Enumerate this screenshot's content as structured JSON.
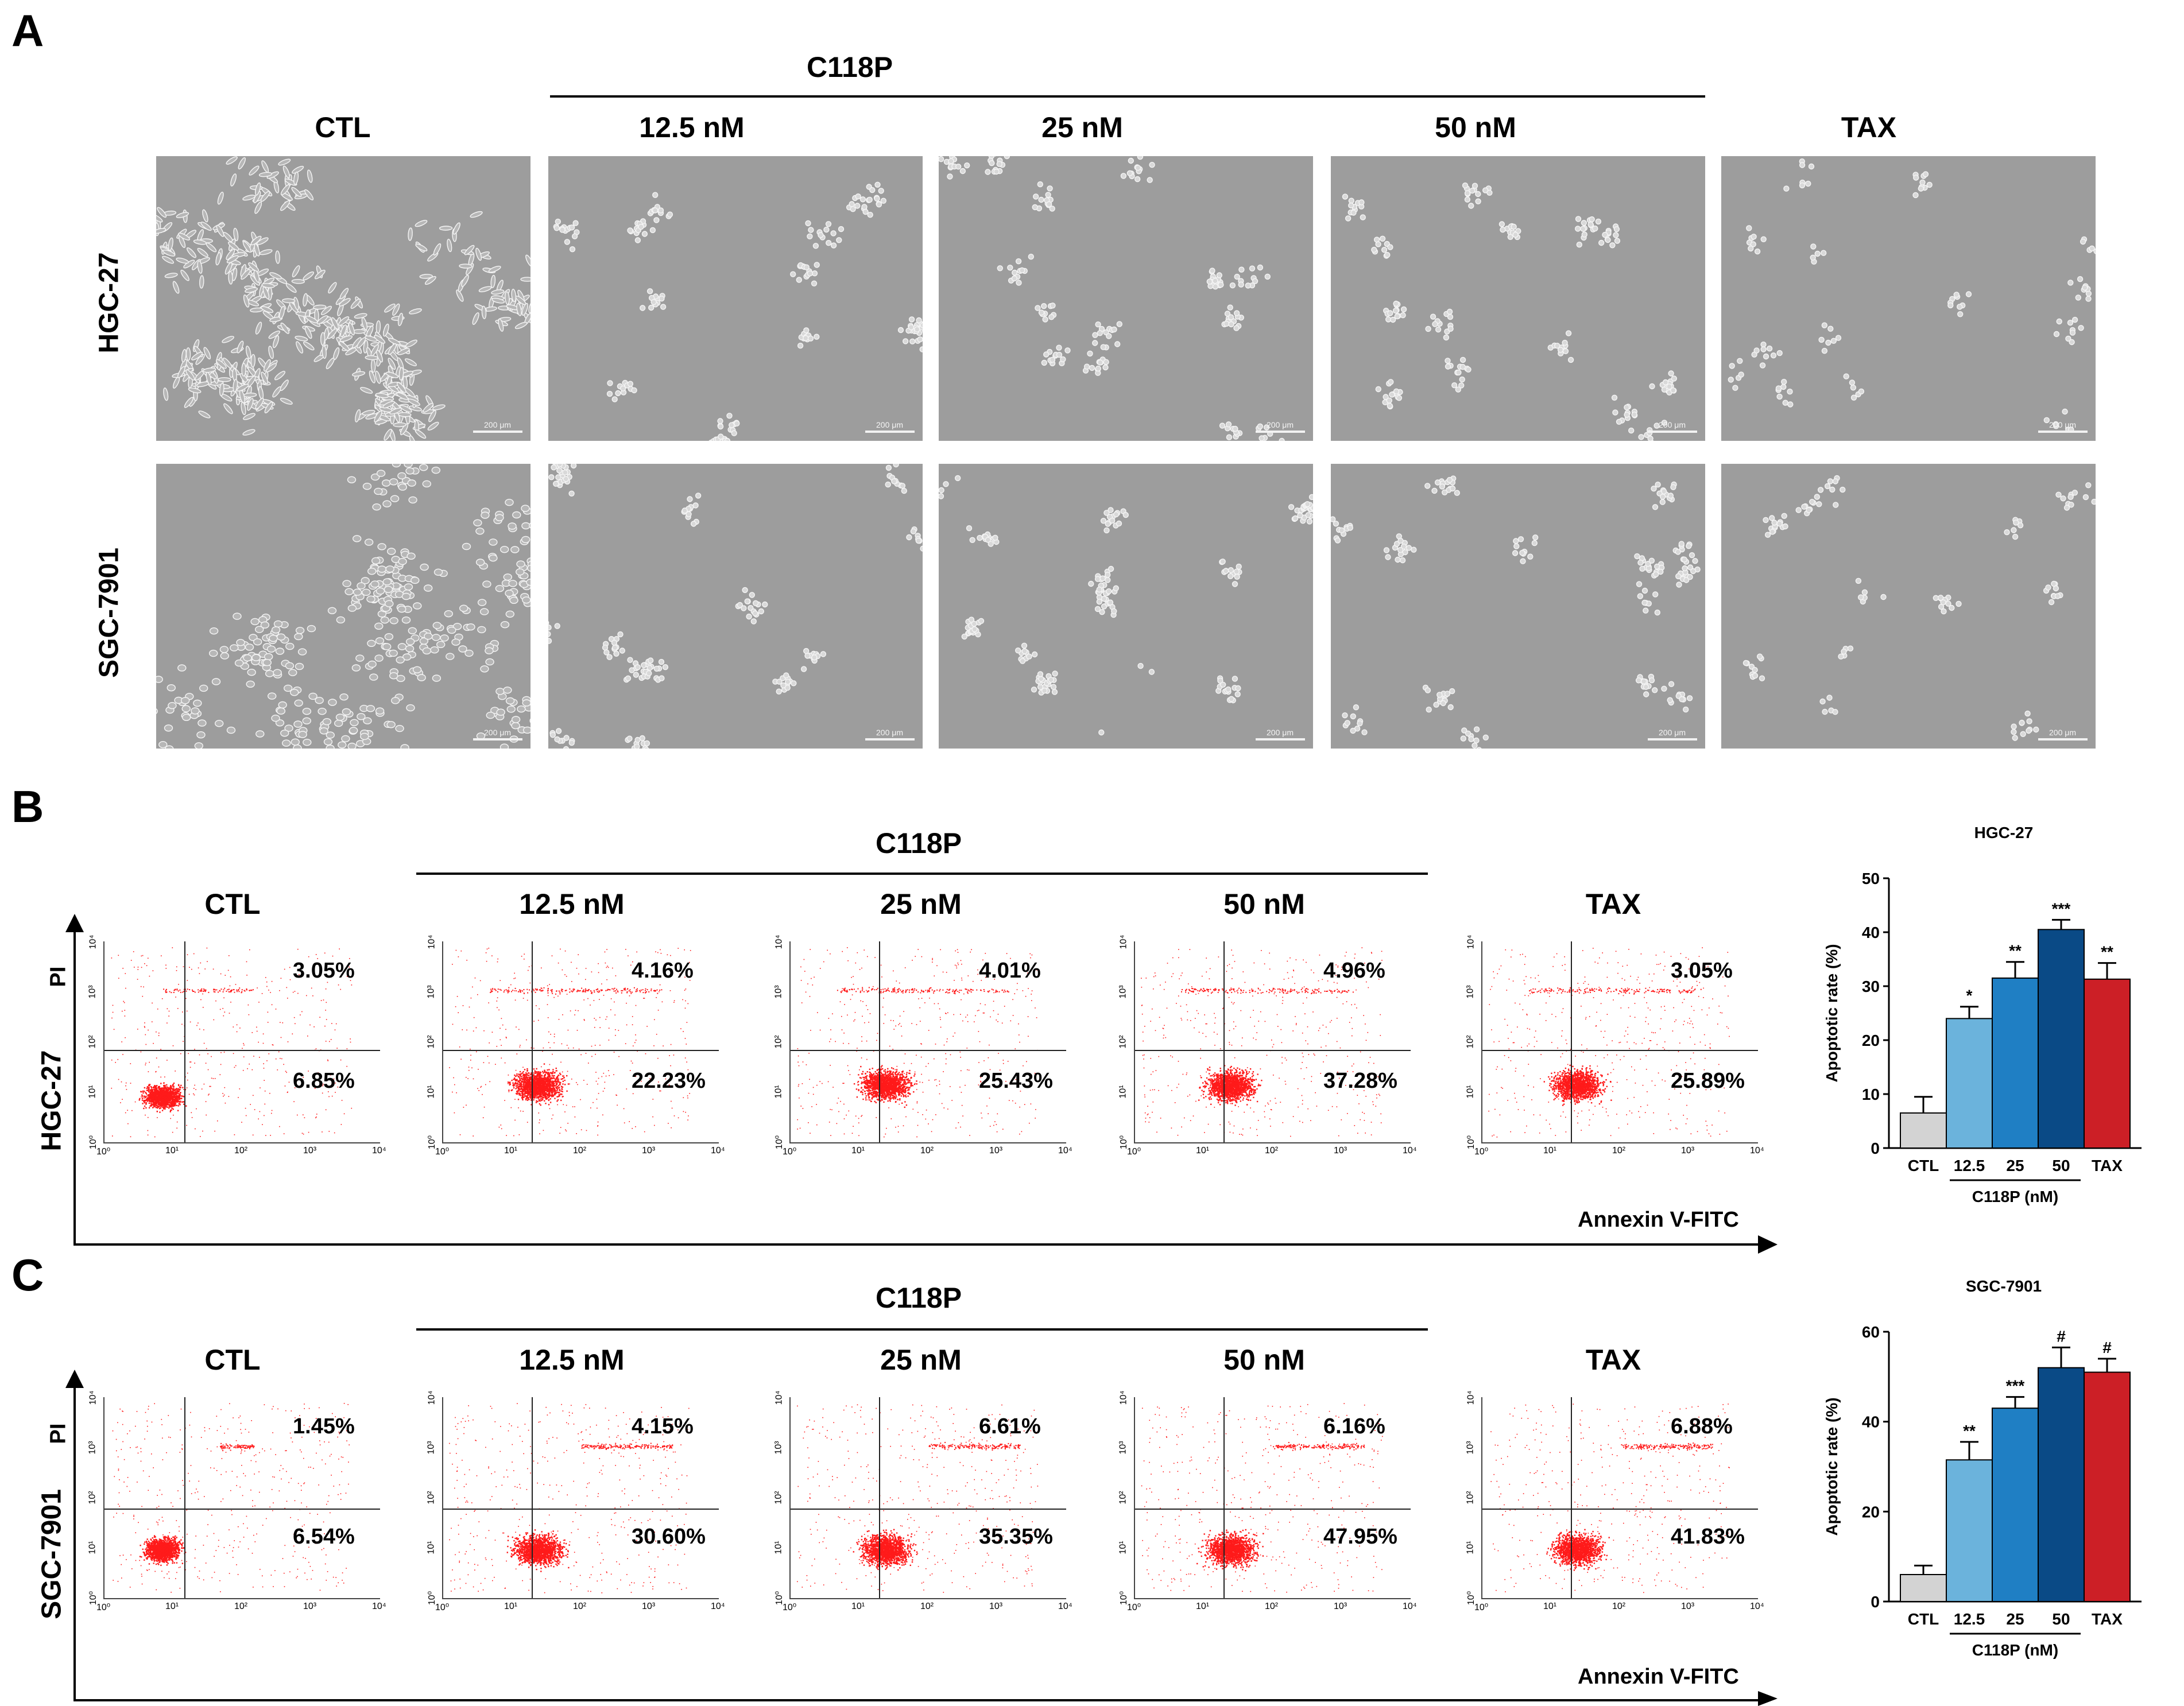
{
  "panelA": {
    "letter": "A",
    "group_label": "C118P",
    "columns": [
      "CTL",
      "12.5 nM",
      "25 nM",
      "50 nM",
      "TAX"
    ],
    "rows": [
      "HGC-27",
      "SGC-7901"
    ],
    "scale_label": "200 μm"
  },
  "panelB": {
    "letter": "B",
    "group_label": "C118P",
    "row_label": "HGC-27",
    "columns": [
      "CTL",
      "12.5 nM",
      "25 nM",
      "50 nM",
      "TAX"
    ],
    "upper_right": [
      "3.05%",
      "4.16%",
      "4.01%",
      "4.96%",
      "3.05%"
    ],
    "lower_right": [
      "6.85%",
      "22.23%",
      "25.43%",
      "37.28%",
      "25.89%"
    ],
    "y_axis_label": "PI",
    "x_axis_label": "Annexin V-FITC",
    "x_ticks": [
      "10⁰",
      "10¹",
      "10²",
      "10³",
      "10⁴"
    ],
    "y_ticks": [
      "10⁰",
      "10¹",
      "10²",
      "10³",
      "10⁴"
    ]
  },
  "panelC": {
    "letter": "C",
    "group_label": "C118P",
    "row_label": "SGC-7901",
    "columns": [
      "CTL",
      "12.5 nM",
      "25 nM",
      "50 nM",
      "TAX"
    ],
    "upper_right": [
      "1.45%",
      "4.15%",
      "6.61%",
      "6.16%",
      "6.88%"
    ],
    "lower_right": [
      "6.54%",
      "30.60%",
      "35.35%",
      "47.95%",
      "41.83%"
    ],
    "y_axis_label": "PI",
    "x_axis_label": "Annexin V-FITC",
    "x_ticks": [
      "10⁰",
      "10¹",
      "10²",
      "10³",
      "10⁴"
    ],
    "y_ticks": [
      "10⁰",
      "10¹",
      "10²",
      "10³",
      "10⁴"
    ]
  },
  "colors": {
    "scatter": "#ff1a1a",
    "bar_ctl": "#d3d3d3",
    "bar_12_5": "#6bb3dc",
    "bar_25": "#1f7fc4",
    "bar_50": "#0a4a86",
    "bar_tax": "#cc1f26"
  },
  "chart_data": [
    {
      "type": "bar",
      "title": "HGC-27",
      "categories": [
        "CTL",
        "12.5",
        "25",
        "50",
        "TAX"
      ],
      "values": [
        6.5,
        24,
        31.5,
        40.5,
        31.3
      ],
      "errors": [
        3,
        2.2,
        3,
        1.8,
        3
      ],
      "significance": [
        "",
        "*",
        "**",
        "***",
        "**"
      ],
      "ylabel": "Apoptotic rate (%)",
      "group_label": "C118P (nM)",
      "yticks": [
        "0",
        "10",
        "20",
        "30",
        "40",
        "50"
      ],
      "ylim": [
        0,
        50
      ]
    },
    {
      "type": "bar",
      "title": "SGC-7901",
      "categories": [
        "CTL",
        "12.5",
        "25",
        "50",
        "TAX"
      ],
      "values": [
        6,
        31.5,
        43,
        52,
        51
      ],
      "errors": [
        2,
        4,
        2.5,
        4.5,
        3
      ],
      "significance": [
        "",
        "**",
        "***",
        "#",
        "#"
      ],
      "ylabel": "Apoptotic rate (%)",
      "group_label": "C118P (nM)",
      "yticks": [
        "0",
        "20",
        "40",
        "60"
      ],
      "ylim": [
        0,
        60
      ]
    }
  ]
}
